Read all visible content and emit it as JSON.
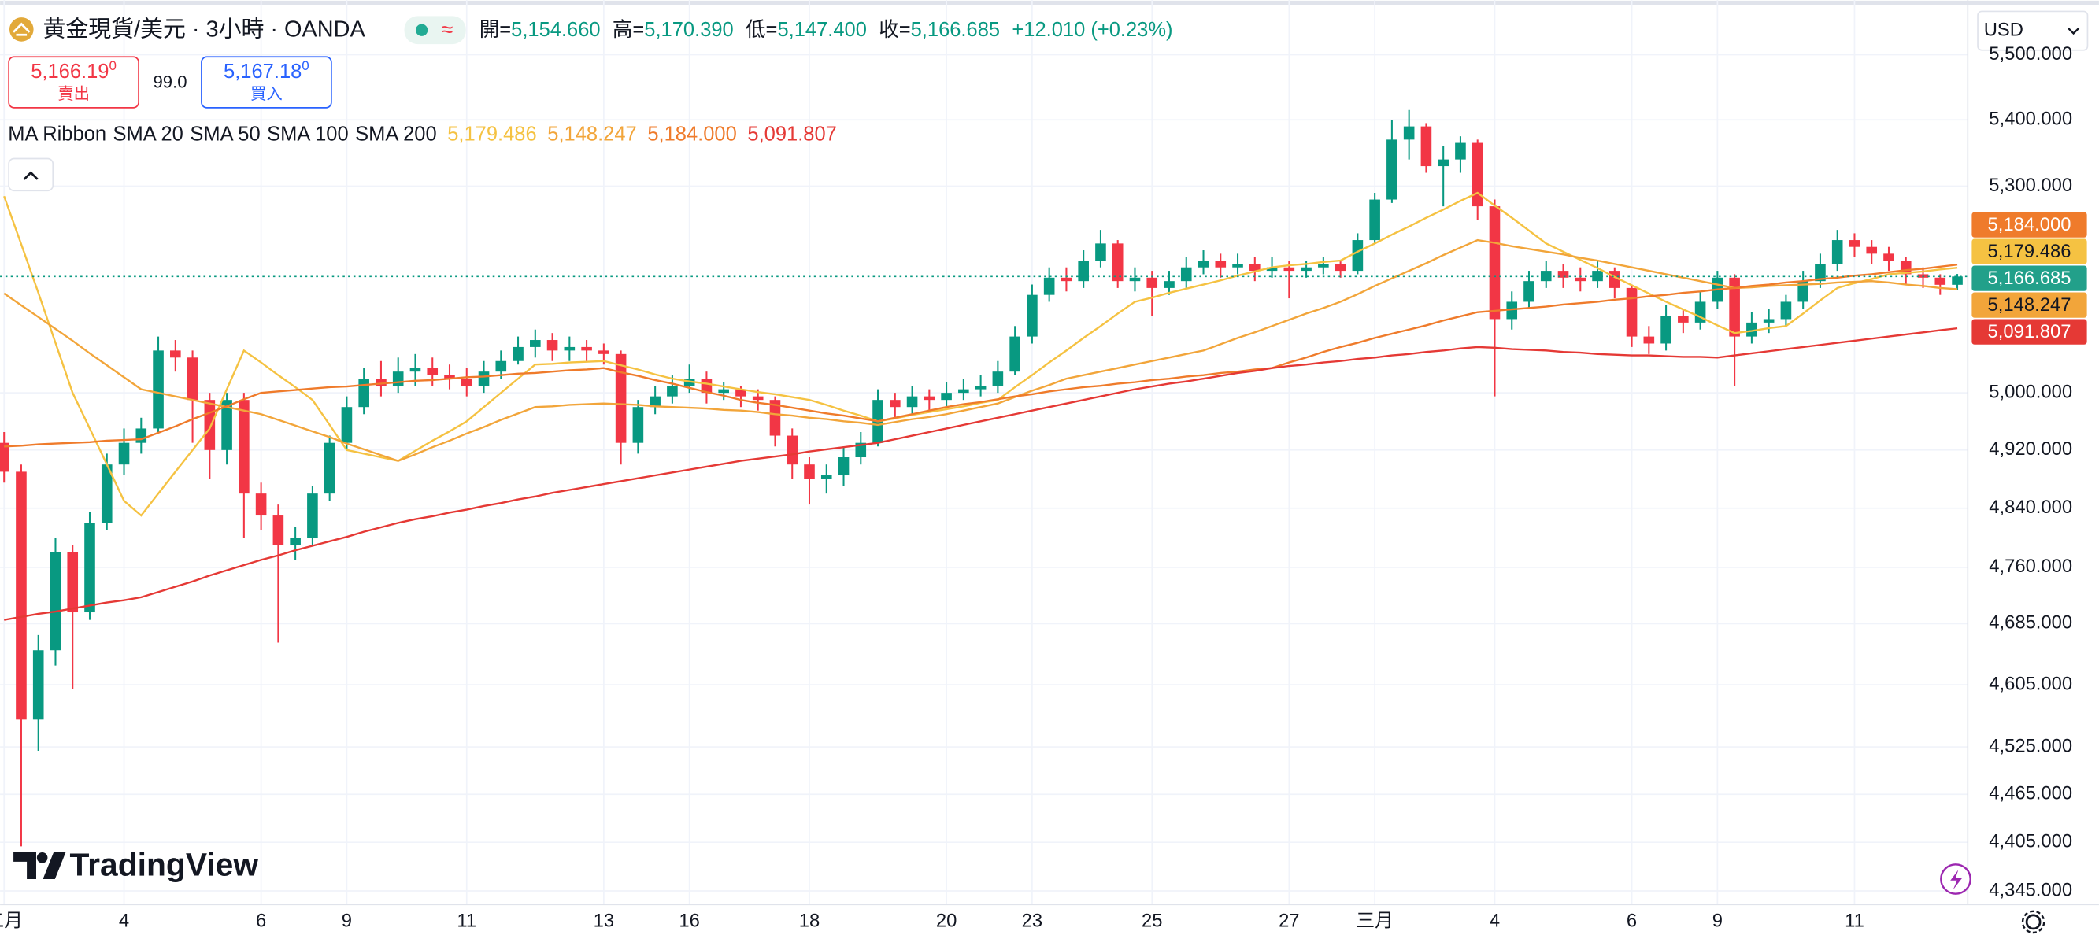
{
  "header": {
    "symbol": "黄金現貨/美元 · 3小時 · OANDA",
    "ohlc": [
      {
        "label": "開=",
        "value": "5,154.660"
      },
      {
        "label": "高=",
        "value": "5,170.390"
      },
      {
        "label": "低=",
        "value": "5,147.400"
      },
      {
        "label": "收=",
        "value": "5,166.685"
      }
    ],
    "change": "+12.010 (+0.23%)",
    "sell": {
      "price": "5,166.19",
      "sup": "0",
      "label": "賣出"
    },
    "spread": "99.0",
    "buy": {
      "price": "5,167.18",
      "sup": "0",
      "label": "買入"
    },
    "currency": "USD"
  },
  "chart_data": {
    "type": "candlestick",
    "indicator": "MA Ribbon",
    "log": true,
    "grid": true,
    "up_color": "#089981",
    "down_color": "#f23645",
    "ylim": [
      4330,
      5575
    ],
    "yticks": [
      {
        "value": 5500,
        "label": "5,500.000"
      },
      {
        "value": 5400,
        "label": "5,400.000"
      },
      {
        "value": 5300,
        "label": "5,300.000"
      },
      {
        "value": 5000,
        "label": "5,000.000"
      },
      {
        "value": 4920,
        "label": "4,920.000"
      },
      {
        "value": 4840,
        "label": "4,840.000"
      },
      {
        "value": 4760,
        "label": "4,760.000"
      },
      {
        "value": 4685,
        "label": "4,685.000"
      },
      {
        "value": 4605,
        "label": "4,605.000"
      },
      {
        "value": 4525,
        "label": "4,525.000"
      },
      {
        "value": 4465,
        "label": "4,465.000"
      },
      {
        "value": 4405,
        "label": "4,405.000"
      },
      {
        "value": 4345,
        "label": "4,345.000"
      }
    ],
    "categories": [
      "二月",
      null,
      null,
      null,
      null,
      null,
      null,
      "4",
      null,
      null,
      null,
      null,
      null,
      null,
      null,
      "6",
      null,
      null,
      null,
      null,
      "9",
      null,
      null,
      null,
      null,
      null,
      null,
      "11",
      null,
      null,
      null,
      null,
      null,
      null,
      null,
      "13",
      null,
      null,
      null,
      null,
      "16",
      null,
      null,
      null,
      null,
      null,
      null,
      "18",
      null,
      null,
      null,
      null,
      null,
      null,
      null,
      "20",
      null,
      null,
      null,
      null,
      "23",
      null,
      null,
      null,
      null,
      null,
      null,
      "25",
      null,
      null,
      null,
      null,
      null,
      null,
      null,
      "27",
      null,
      null,
      null,
      null,
      "三月",
      null,
      null,
      null,
      null,
      null,
      null,
      "4",
      null,
      null,
      null,
      null,
      null,
      null,
      null,
      "6",
      null,
      null,
      null,
      null,
      "9",
      null,
      null,
      null,
      null,
      null,
      null,
      null,
      "11",
      null,
      null,
      null,
      null,
      null,
      null
    ],
    "open": [
      4930,
      4890,
      4560,
      4650,
      4780,
      4700,
      4820,
      4900,
      4930,
      4950,
      5060,
      5050,
      4990,
      4920,
      4990,
      4860,
      4830,
      4790,
      4800,
      4860,
      4930,
      4980,
      5020,
      5010,
      5030,
      5035,
      5025,
      5020,
      5010,
      5030,
      5045,
      5065,
      5075,
      5060,
      5065,
      5060,
      5055,
      4930,
      4980,
      4995,
      5010,
      5020,
      5000,
      5005,
      4995,
      4990,
      4940,
      4900,
      4880,
      4885,
      4910,
      4930,
      4990,
      4980,
      4995,
      4990,
      5000,
      5005,
      5010,
      5030,
      5080,
      5140,
      5165,
      5160,
      5190,
      5215,
      5160,
      5165,
      5150,
      5160,
      5180,
      5190,
      5180,
      5185,
      5175,
      5180,
      5175,
      5180,
      5185,
      5175,
      5220,
      5280,
      5370,
      5390,
      5330,
      5340,
      5365,
      5270,
      5105,
      5130,
      5160,
      5175,
      5165,
      5160,
      5175,
      5150,
      5080,
      5070,
      5110,
      5100,
      5130,
      5165,
      5080,
      5100,
      5105,
      5130,
      5160,
      5185,
      5220,
      5210,
      5200,
      5190,
      5170,
      5165,
      5154.66
    ],
    "high": [
      4945,
      4900,
      4670,
      4800,
      4790,
      4835,
      4915,
      4950,
      4965,
      5080,
      5075,
      5060,
      5000,
      5000,
      5000,
      4875,
      4845,
      4815,
      4870,
      4940,
      4995,
      5035,
      5045,
      5050,
      5055,
      5050,
      5040,
      5035,
      5045,
      5060,
      5080,
      5090,
      5085,
      5080,
      5075,
      5070,
      5060,
      4990,
      5010,
      5025,
      5040,
      5030,
      5015,
      5010,
      5005,
      4995,
      4950,
      4910,
      4900,
      4925,
      4945,
      5005,
      5000,
      5010,
      5005,
      5015,
      5020,
      5025,
      5045,
      5095,
      5155,
      5180,
      5180,
      5205,
      5235,
      5220,
      5180,
      5175,
      5175,
      5195,
      5205,
      5200,
      5200,
      5195,
      5195,
      5190,
      5190,
      5195,
      5190,
      5230,
      5290,
      5400,
      5415,
      5395,
      5360,
      5375,
      5370,
      5280,
      5145,
      5175,
      5190,
      5185,
      5180,
      5190,
      5180,
      5155,
      5095,
      5125,
      5120,
      5145,
      5175,
      5170,
      5115,
      5120,
      5140,
      5175,
      5200,
      5235,
      5230,
      5220,
      5210,
      5195,
      5180,
      5170,
      5170.39
    ],
    "low": [
      4875,
      4400,
      4520,
      4630,
      4600,
      4690,
      4810,
      4885,
      4915,
      4945,
      5030,
      4930,
      4880,
      4900,
      4800,
      4810,
      4660,
      4770,
      4790,
      4850,
      4920,
      4970,
      4995,
      5000,
      5010,
      5010,
      5005,
      4995,
      5000,
      5020,
      5040,
      5050,
      5045,
      5045,
      5045,
      5040,
      4900,
      4915,
      4970,
      4985,
      5000,
      4985,
      4990,
      4980,
      4975,
      4925,
      4880,
      4845,
      4860,
      4870,
      4900,
      4925,
      4965,
      4970,
      4975,
      4980,
      4990,
      4995,
      5000,
      5025,
      5070,
      5130,
      5145,
      5150,
      5180,
      5150,
      5145,
      5110,
      5140,
      5150,
      5170,
      5165,
      5170,
      5160,
      5165,
      5135,
      5165,
      5170,
      5165,
      5170,
      5215,
      5275,
      5340,
      5320,
      5270,
      5320,
      5250,
      4995,
      5090,
      5120,
      5150,
      5150,
      5145,
      5150,
      5135,
      5065,
      5055,
      5060,
      5085,
      5090,
      5120,
      5010,
      5070,
      5085,
      5095,
      5120,
      5150,
      5175,
      5195,
      5185,
      5175,
      5155,
      5150,
      5140,
      5147.4
    ],
    "close": [
      4890,
      4560,
      4650,
      4780,
      4700,
      4820,
      4900,
      4930,
      4950,
      5060,
      5050,
      4990,
      4920,
      4990,
      4860,
      4830,
      4790,
      4800,
      4860,
      4930,
      4980,
      5020,
      5010,
      5030,
      5035,
      5025,
      5020,
      5010,
      5030,
      5045,
      5065,
      5075,
      5060,
      5065,
      5060,
      5055,
      4930,
      4980,
      4995,
      5010,
      5020,
      5000,
      5005,
      4995,
      4990,
      4940,
      4900,
      4880,
      4885,
      4910,
      4930,
      4990,
      4980,
      4995,
      4990,
      5000,
      5005,
      5010,
      5030,
      5080,
      5140,
      5165,
      5160,
      5190,
      5215,
      5160,
      5165,
      5150,
      5160,
      5180,
      5190,
      5180,
      5185,
      5175,
      5180,
      5175,
      5180,
      5185,
      5175,
      5220,
      5280,
      5370,
      5390,
      5330,
      5340,
      5365,
      5270,
      5105,
      5130,
      5160,
      5175,
      5165,
      5160,
      5175,
      5150,
      5080,
      5070,
      5110,
      5100,
      5130,
      5165,
      5080,
      5100,
      5105,
      5130,
      5160,
      5185,
      5220,
      5210,
      5200,
      5190,
      5170,
      5165,
      5154.66,
      5166.685
    ],
    "last_price_label": "5,166.685",
    "series": [
      {
        "name": "SMA 20",
        "color": "#f5c242",
        "last_label": "5,179.486",
        "values": [
          5285,
          5214,
          5143,
          5071,
          5000,
          4950,
          4900,
          4850,
          4830,
          4860,
          4890,
          4920,
          4950,
          5005,
          5060,
          5043,
          5025,
          5008,
          4990,
          4955,
          4920,
          4915,
          4910,
          4905,
          4919,
          4933,
          4946,
          4960,
          4980,
          5000,
          5020,
          5040,
          5041,
          5043,
          5044,
          5045,
          5039,
          5033,
          5026,
          5020,
          5016,
          5013,
          5009,
          5005,
          5001,
          4998,
          4994,
          4990,
          4983,
          4975,
          4968,
          4960,
          4964,
          4969,
          4973,
          4977,
          4981,
          4986,
          4990,
          5008,
          5025,
          5043,
          5060,
          5078,
          5095,
          5113,
          5130,
          5136,
          5143,
          5149,
          5155,
          5161,
          5168,
          5174,
          5180,
          5183,
          5185,
          5188,
          5190,
          5203,
          5215,
          5228,
          5240,
          5253,
          5265,
          5278,
          5290,
          5271,
          5253,
          5234,
          5215,
          5203,
          5191,
          5179,
          5166,
          5154,
          5142,
          5130,
          5119,
          5108,
          5096,
          5085,
          5088,
          5092,
          5095,
          5113,
          5132,
          5150,
          5157,
          5163,
          5170,
          5172,
          5174,
          5177,
          5179.486
        ]
      },
      {
        "name": "SMA 50",
        "color": "#f2a53a",
        "last_label": "5,148.247",
        "values": [
          5142,
          5125,
          5108,
          5091,
          5074,
          5056,
          5039,
          5022,
          5005,
          5000,
          4995,
          4990,
          4985,
          4980,
          4975,
          4970,
          4962,
          4954,
          4946,
          4938,
          4929,
          4921,
          4913,
          4905,
          4914,
          4924,
          4933,
          4943,
          4952,
          4962,
          4971,
          4980,
          4981,
          4983,
          4984,
          4985,
          4984,
          4983,
          4981,
          4980,
          4979,
          4978,
          4976,
          4975,
          4973,
          4970,
          4968,
          4965,
          4963,
          4960,
          4958,
          4955,
          4959,
          4963,
          4966,
          4970,
          4975,
          4980,
          4985,
          4994,
          5003,
          5011,
          5020,
          5025,
          5030,
          5035,
          5040,
          5045,
          5050,
          5055,
          5060,
          5069,
          5078,
          5086,
          5095,
          5104,
          5113,
          5121,
          5130,
          5141,
          5153,
          5164,
          5175,
          5186,
          5198,
          5209,
          5220,
          5216,
          5211,
          5207,
          5203,
          5199,
          5194,
          5190,
          5185,
          5180,
          5175,
          5170,
          5165,
          5160,
          5155,
          5150,
          5151,
          5153,
          5154,
          5155,
          5156,
          5158,
          5159,
          5160,
          5158,
          5155,
          5153,
          5150,
          5148.247
        ]
      },
      {
        "name": "SMA 100",
        "color": "#ef7b2b",
        "last_label": "5,184.000",
        "values": [
          4925,
          4926,
          4928,
          4929,
          4930,
          4931,
          4933,
          4934,
          4935,
          4944,
          4953,
          4963,
          4972,
          4981,
          4991,
          5000,
          5002,
          5004,
          5006,
          5008,
          5009,
          5011,
          5013,
          5015,
          5017,
          5018,
          5020,
          5022,
          5023,
          5025,
          5027,
          5028,
          5030,
          5032,
          5033,
          5035,
          5029,
          5024,
          5018,
          5013,
          5007,
          5001,
          4996,
          4990,
          4986,
          4983,
          4979,
          4975,
          4971,
          4968,
          4964,
          4960,
          4965,
          4970,
          4975,
          4980,
          4984,
          4987,
          4991,
          4995,
          4998,
          5002,
          5005,
          5008,
          5010,
          5013,
          5015,
          5018,
          5020,
          5023,
          5025,
          5028,
          5030,
          5033,
          5035,
          5043,
          5050,
          5058,
          5065,
          5071,
          5078,
          5084,
          5090,
          5096,
          5103,
          5109,
          5115,
          5117,
          5119,
          5121,
          5123,
          5126,
          5128,
          5130,
          5133,
          5135,
          5138,
          5140,
          5143,
          5145,
          5148,
          5150,
          5153,
          5155,
          5158,
          5160,
          5163,
          5165,
          5168,
          5170,
          5173,
          5176,
          5178,
          5181,
          5184
        ]
      },
      {
        "name": "SMA 200",
        "color": "#e53935",
        "last_label": "5,091.807",
        "values": [
          4690,
          4694,
          4698,
          4701,
          4705,
          4709,
          4713,
          4716,
          4720,
          4727,
          4734,
          4741,
          4749,
          4756,
          4763,
          4770,
          4776,
          4783,
          4789,
          4795,
          4801,
          4808,
          4814,
          4820,
          4825,
          4829,
          4834,
          4838,
          4843,
          4847,
          4852,
          4856,
          4861,
          4865,
          4869,
          4873,
          4877,
          4881,
          4885,
          4889,
          4893,
          4897,
          4901,
          4905,
          4908,
          4911,
          4914,
          4918,
          4921,
          4924,
          4927,
          4930,
          4935,
          4940,
          4945,
          4950,
          4955,
          4960,
          4965,
          4970,
          4975,
          4980,
          4985,
          4990,
          4995,
          5000,
          5005,
          5009,
          5013,
          5016,
          5020,
          5024,
          5028,
          5031,
          5035,
          5038,
          5040,
          5043,
          5045,
          5048,
          5050,
          5053,
          5055,
          5058,
          5060,
          5063,
          5065,
          5064,
          5062,
          5061,
          5060,
          5058,
          5057,
          5055,
          5054,
          5053,
          5053,
          5052,
          5051,
          5051,
          5050,
          5053,
          5056,
          5059,
          5062,
          5065,
          5068,
          5071,
          5074,
          5077,
          5080,
          5083,
          5086,
          5089,
          5091.807
        ]
      }
    ]
  },
  "branding": "TradingView"
}
